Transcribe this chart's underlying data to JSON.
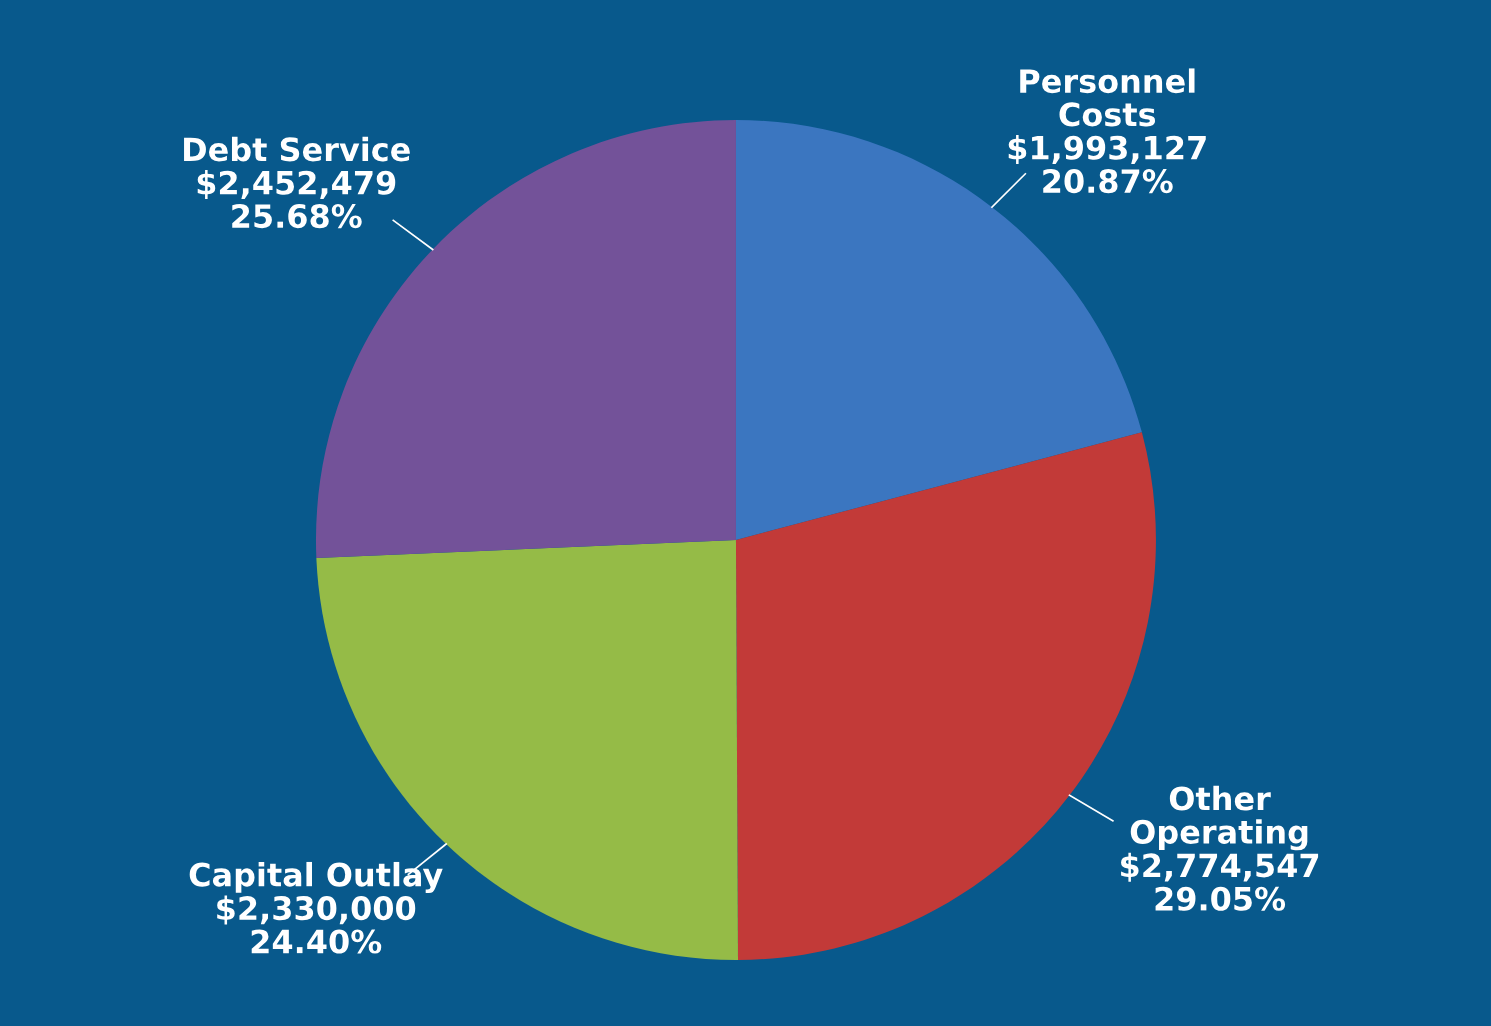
{
  "chart_data": {
    "type": "pie",
    "categories": [
      "Personnel\nCosts",
      "Other\nOperating",
      "Capital Outlay",
      "Debt Service"
    ],
    "values": [
      1993127,
      2774547,
      2330000,
      2452479
    ],
    "value_labels": [
      "$1,993,127\n20.87%",
      "$2,774,547\n29.05%",
      "$2,330,000\n24.40%",
      "$2,452,479\n25.68%"
    ],
    "colors": [
      "#3b76c0",
      "#c23a38",
      "#95bb47",
      "#735299"
    ],
    "legend": false
  }
}
